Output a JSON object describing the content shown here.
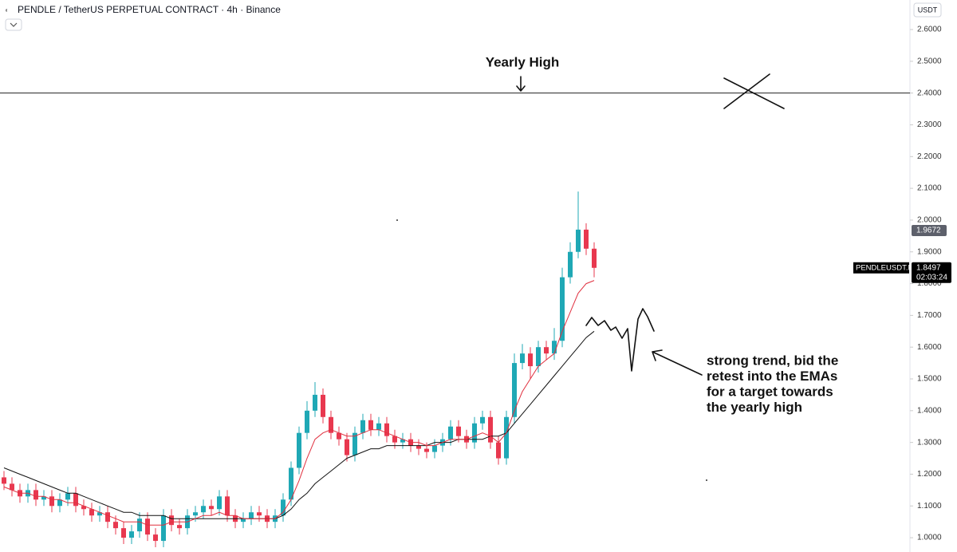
{
  "chart_data": {
    "type": "candlestick",
    "title": "PENDLE / TetherUS PERPETUAL CONTRACT · 4h · Binance",
    "currency": "USDT",
    "up_color": "#1fa8b5",
    "down_color": "#e8384f",
    "open": [
      1.19,
      1.17,
      1.15,
      1.13,
      1.15,
      1.12,
      1.13,
      1.1,
      1.12,
      1.14,
      1.1,
      1.09,
      1.07,
      1.08,
      1.05,
      1.03,
      1.0,
      1.02,
      1.06,
      1.01,
      0.99,
      1.07,
      1.04,
      1.03,
      1.07,
      1.08,
      1.1,
      1.09,
      1.13,
      1.07,
      1.05,
      1.06,
      1.08,
      1.07,
      1.05,
      1.07,
      1.12,
      1.22,
      1.33,
      1.4,
      1.45,
      1.38,
      1.33,
      1.31,
      1.26,
      1.33,
      1.37,
      1.34,
      1.36,
      1.32,
      1.3,
      1.31,
      1.29,
      1.28,
      1.27,
      1.29,
      1.31,
      1.35,
      1.32,
      1.3,
      1.36,
      1.38,
      1.3,
      1.25,
      1.38,
      1.55,
      1.58,
      1.54,
      1.6,
      1.58,
      1.62,
      1.82,
      1.9,
      1.97,
      1.91
    ],
    "high": [
      1.21,
      1.19,
      1.17,
      1.17,
      1.17,
      1.15,
      1.15,
      1.14,
      1.16,
      1.16,
      1.12,
      1.11,
      1.1,
      1.1,
      1.07,
      1.05,
      1.04,
      1.08,
      1.08,
      1.03,
      1.09,
      1.09,
      1.06,
      1.09,
      1.1,
      1.12,
      1.12,
      1.15,
      1.15,
      1.09,
      1.08,
      1.1,
      1.1,
      1.09,
      1.09,
      1.14,
      1.24,
      1.35,
      1.43,
      1.49,
      1.47,
      1.4,
      1.35,
      1.33,
      1.35,
      1.39,
      1.39,
      1.38,
      1.38,
      1.34,
      1.33,
      1.33,
      1.31,
      1.3,
      1.31,
      1.33,
      1.37,
      1.37,
      1.34,
      1.38,
      1.4,
      1.4,
      1.32,
      1.4,
      1.58,
      1.61,
      1.6,
      1.62,
      1.62,
      1.66,
      1.85,
      1.93,
      2.09,
      1.99,
      1.93
    ],
    "low": [
      1.15,
      1.13,
      1.11,
      1.11,
      1.1,
      1.1,
      1.08,
      1.08,
      1.1,
      1.08,
      1.07,
      1.05,
      1.05,
      1.03,
      1.01,
      0.98,
      0.98,
      1.0,
      0.99,
      0.97,
      0.97,
      1.02,
      1.01,
      1.01,
      1.05,
      1.06,
      1.07,
      1.07,
      1.05,
      1.03,
      1.03,
      1.04,
      1.05,
      1.03,
      1.03,
      1.05,
      1.1,
      1.2,
      1.31,
      1.38,
      1.36,
      1.31,
      1.29,
      1.24,
      1.24,
      1.31,
      1.32,
      1.32,
      1.3,
      1.28,
      1.28,
      1.27,
      1.26,
      1.25,
      1.25,
      1.27,
      1.29,
      1.3,
      1.28,
      1.28,
      1.34,
      1.28,
      1.23,
      1.23,
      1.36,
      1.53,
      1.5,
      1.52,
      1.56,
      1.56,
      1.6,
      1.8,
      1.88,
      1.89,
      1.82
    ],
    "close": [
      1.17,
      1.15,
      1.13,
      1.15,
      1.12,
      1.13,
      1.1,
      1.12,
      1.14,
      1.1,
      1.09,
      1.07,
      1.08,
      1.05,
      1.03,
      1.0,
      1.02,
      1.06,
      1.01,
      0.99,
      1.07,
      1.04,
      1.03,
      1.07,
      1.08,
      1.1,
      1.09,
      1.13,
      1.07,
      1.05,
      1.06,
      1.08,
      1.07,
      1.05,
      1.07,
      1.12,
      1.22,
      1.33,
      1.4,
      1.45,
      1.38,
      1.33,
      1.31,
      1.26,
      1.33,
      1.37,
      1.34,
      1.36,
      1.32,
      1.3,
      1.31,
      1.29,
      1.28,
      1.27,
      1.29,
      1.31,
      1.35,
      1.32,
      1.3,
      1.36,
      1.38,
      1.3,
      1.25,
      1.38,
      1.55,
      1.58,
      1.54,
      1.6,
      1.58,
      1.62,
      1.82,
      1.9,
      1.97,
      1.91,
      1.8497
    ],
    "lines": [
      {
        "color": "#111111",
        "values": [
          1.22,
          1.21,
          1.2,
          1.19,
          1.18,
          1.17,
          1.16,
          1.15,
          1.14,
          1.14,
          1.13,
          1.12,
          1.11,
          1.1,
          1.09,
          1.08,
          1.08,
          1.07,
          1.07,
          1.07,
          1.07,
          1.06,
          1.06,
          1.06,
          1.06,
          1.06,
          1.06,
          1.06,
          1.06,
          1.06,
          1.06,
          1.06,
          1.06,
          1.06,
          1.06,
          1.07,
          1.09,
          1.12,
          1.14,
          1.17,
          1.19,
          1.21,
          1.23,
          1.25,
          1.26,
          1.27,
          1.28,
          1.28,
          1.29,
          1.29,
          1.29,
          1.29,
          1.29,
          1.29,
          1.3,
          1.3,
          1.3,
          1.31,
          1.31,
          1.31,
          1.31,
          1.32,
          1.32,
          1.33,
          1.36,
          1.39,
          1.42,
          1.45,
          1.48,
          1.51,
          1.54,
          1.57,
          1.6,
          1.63,
          1.65
        ]
      },
      {
        "color": "#e0303f",
        "values": [
          1.16,
          1.15,
          1.14,
          1.14,
          1.13,
          1.13,
          1.12,
          1.12,
          1.11,
          1.11,
          1.1,
          1.09,
          1.08,
          1.07,
          1.06,
          1.05,
          1.05,
          1.05,
          1.04,
          1.04,
          1.04,
          1.05,
          1.05,
          1.05,
          1.06,
          1.07,
          1.07,
          1.08,
          1.07,
          1.07,
          1.06,
          1.06,
          1.06,
          1.06,
          1.06,
          1.08,
          1.12,
          1.18,
          1.25,
          1.31,
          1.33,
          1.34,
          1.33,
          1.32,
          1.32,
          1.33,
          1.34,
          1.34,
          1.33,
          1.32,
          1.31,
          1.3,
          1.3,
          1.29,
          1.29,
          1.3,
          1.31,
          1.31,
          1.31,
          1.32,
          1.33,
          1.32,
          1.3,
          1.33,
          1.4,
          1.46,
          1.5,
          1.54,
          1.56,
          1.58,
          1.65,
          1.71,
          1.77,
          1.8,
          1.81
        ]
      }
    ],
    "ylim": [
      0.955,
      2.693
    ],
    "yticks": [
      {
        "value": 1.0,
        "label": "1.0000"
      },
      {
        "value": 1.1,
        "label": "1.1000"
      },
      {
        "value": 1.2,
        "label": "1.2000"
      },
      {
        "value": 1.3,
        "label": "1.3000"
      },
      {
        "value": 1.4,
        "label": "1.4000"
      },
      {
        "value": 1.5,
        "label": "1.5000"
      },
      {
        "value": 1.6,
        "label": "1.6000"
      },
      {
        "value": 1.7,
        "label": "1.7000"
      },
      {
        "value": 1.8,
        "label": "1.8000"
      },
      {
        "value": 1.9,
        "label": "1.9000"
      },
      {
        "value": 2.0,
        "label": "2.0000"
      },
      {
        "value": 2.1,
        "label": "2.1000"
      },
      {
        "value": 2.2,
        "label": "2.2000"
      },
      {
        "value": 2.3,
        "label": "2.3000"
      },
      {
        "value": 2.4,
        "label": "2.4000"
      },
      {
        "value": 2.5,
        "label": "2.5000"
      },
      {
        "value": 2.6,
        "label": "2.6000"
      }
    ],
    "level": {
      "value": 2.4,
      "label": "Yearly High"
    },
    "marker_price": 1.9672,
    "last_price": {
      "symbol": "PENDLEUSDT.P",
      "value": 1.8497,
      "countdown": "02:03:24"
    },
    "note": [
      "strong trend, bid the",
      "retest into the EMAs",
      "for a target towards",
      "the yearly high"
    ]
  }
}
